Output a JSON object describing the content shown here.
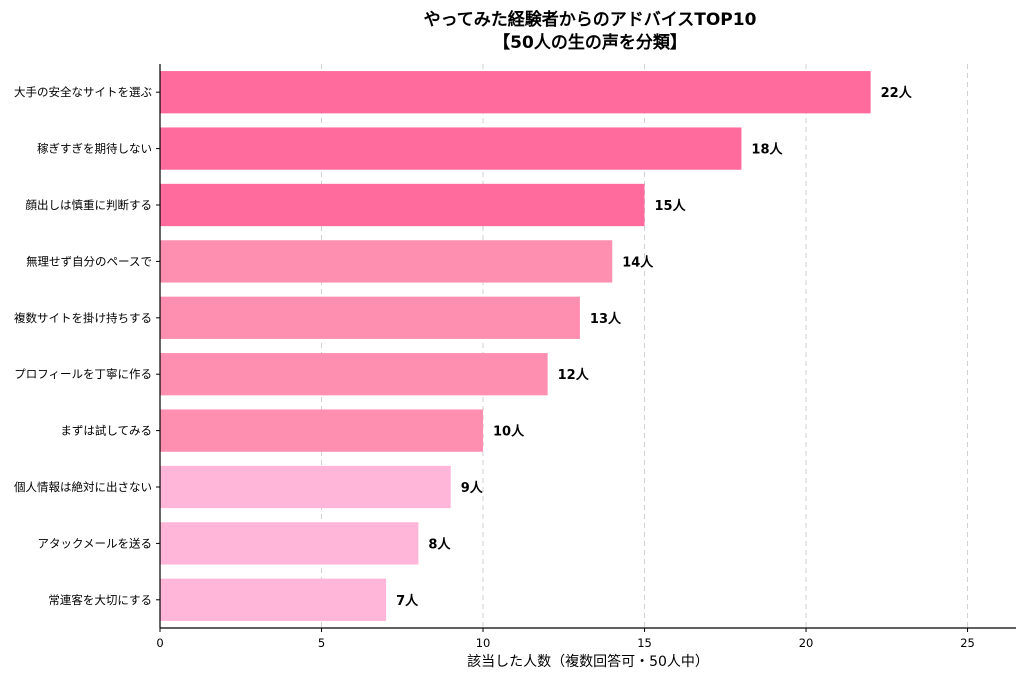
{
  "chart_data": {
    "type": "bar",
    "orientation": "horizontal",
    "title": "やってみた経験者からのアドバイスTOP10",
    "subtitle": "【50人の生の声を分類】",
    "xlabel": "該当した人数（複数回答可・50人中）",
    "ylabel": "",
    "xlim": [
      0,
      26.5
    ],
    "xticks": [
      "0",
      "5",
      "10",
      "15",
      "20",
      "25"
    ],
    "grid": "x, dashed",
    "categories": [
      "大手の安全なサイトを選ぶ",
      "稼ぎすぎを期待しない",
      "顔出しは慎重に判断する",
      "無理せず自分のペースで",
      "複数サイトを掛け持ちする",
      "プロフィールを丁寧に作る",
      "まずは試してみる",
      "個人情報は絶対に出さない",
      "アタックメールを送る",
      "常連客を大切にする"
    ],
    "values": [
      22,
      18,
      15,
      14,
      13,
      12,
      10,
      9,
      8,
      7
    ],
    "value_labels": [
      "22人",
      "18人",
      "15人",
      "14人",
      "13人",
      "12人",
      "10人",
      "9人",
      "8人",
      "7人"
    ],
    "bar_colors": [
      "#ff6b9d",
      "#ff6b9d",
      "#ff6b9d",
      "#ff8fb1",
      "#ff8fb1",
      "#ff8fb1",
      "#ff8fb1",
      "#ffb6d9",
      "#ffb6d9",
      "#ffb6d9"
    ]
  }
}
